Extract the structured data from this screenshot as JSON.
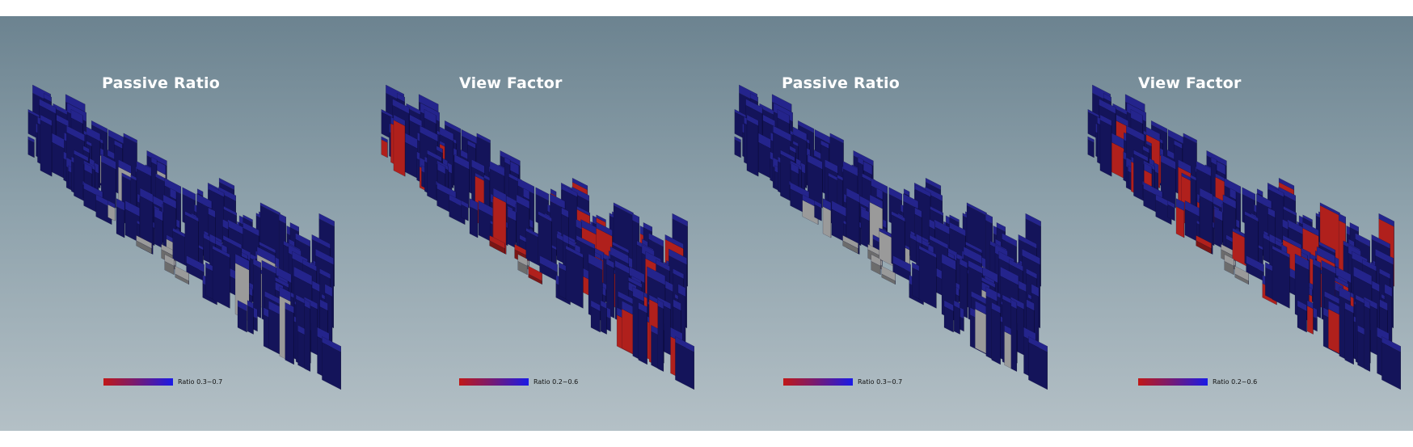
{
  "panels": [
    {
      "title": "Passive Ratio",
      "legend_label": "Ratio 0.3~0.7",
      "highlight": "gray"
    },
    {
      "title": "View Factor",
      "legend_label": "Ratio 0.2~0.6",
      "highlight": "red"
    },
    {
      "title": "Passive Ratio",
      "legend_label": "Ratio 0.3~0.7",
      "highlight": "gray"
    },
    {
      "title": "View Factor",
      "legend_label": "Ratio 0.2~0.6",
      "highlight": "red"
    }
  ],
  "colors": {
    "building_blue": "#24248c",
    "building_blue_dark": "#14145a",
    "highlight_red": "#b0201c",
    "highlight_gray": "#9a9a9a",
    "legend_low": "#c01818",
    "legend_high": "#1a1ae6"
  }
}
